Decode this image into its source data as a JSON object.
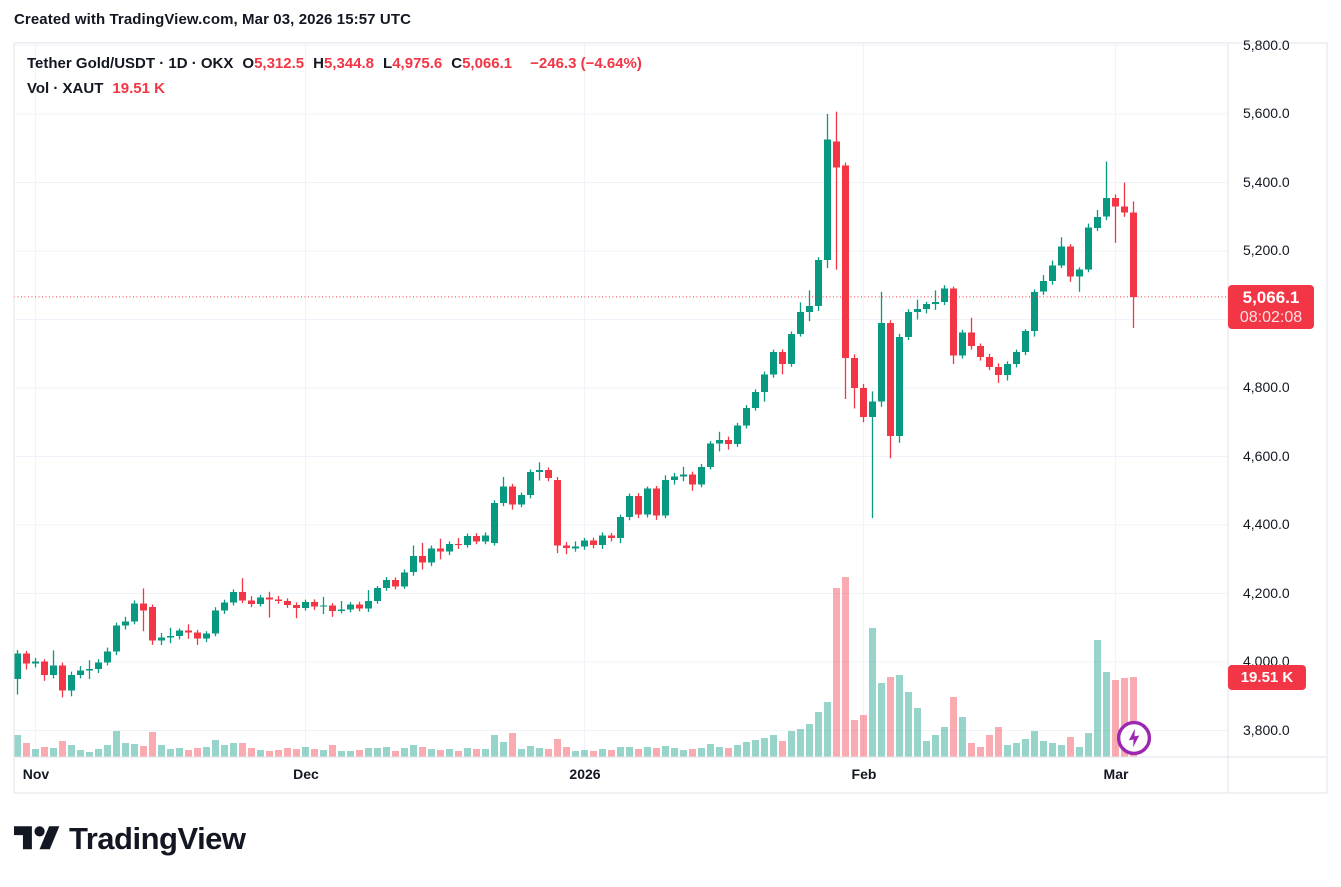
{
  "page": {
    "credit": "Created with TradingView.com, Mar 03, 2026 15:57 UTC"
  },
  "legend": {
    "title": "Tether Gold/USDT · 1D · OKX",
    "ohlc": [
      {
        "label": "O",
        "value": "5,312.5"
      },
      {
        "label": "H",
        "value": "5,344.8"
      },
      {
        "label": "L",
        "value": "4,975.6"
      },
      {
        "label": "C",
        "value": "5,066.1"
      }
    ],
    "change": "−246.3 (−4.64%)",
    "volume_label": "Vol · XAUT",
    "volume_value": "19.51 K"
  },
  "price_scale": {
    "ticks": [
      {
        "label": "5,800.0",
        "price": 5800
      },
      {
        "label": "5,600.0",
        "price": 5600
      },
      {
        "label": "5,400.0",
        "price": 5400
      },
      {
        "label": "5,200.0",
        "price": 5200
      },
      {
        "label": "5,000.0",
        "price": 5000
      },
      {
        "label": "4,800.0",
        "price": 4800
      },
      {
        "label": "4,600.0",
        "price": 4600
      },
      {
        "label": "4,400.0",
        "price": 4400
      },
      {
        "label": "4,200.0",
        "price": 4200
      },
      {
        "label": "4,000.0",
        "price": 4000
      },
      {
        "label": "3,800.0",
        "price": 3800
      }
    ],
    "badge": {
      "price": "5,066.1",
      "countdown": "08:02:08"
    },
    "volume_badge": "19.51 K"
  },
  "time_scale": {
    "ticks": [
      {
        "label": "Nov",
        "index": 2
      },
      {
        "label": "Dec",
        "index": 32
      },
      {
        "label": "2026",
        "index": 63
      },
      {
        "label": "Feb",
        "index": 94
      },
      {
        "label": "Mar",
        "index": 122
      }
    ]
  },
  "footer": {
    "logo_text": "TradingView"
  },
  "colors": {
    "up": "#089981",
    "down": "#f23645",
    "up_volume": "rgba(8,153,129,0.42)",
    "down_volume": "rgba(242,54,69,0.42)",
    "grid": "#f0f3fa",
    "border": "#e0e3eb",
    "text": "#131722",
    "badge": "#f23645",
    "bolt": "#9c27b0"
  },
  "chart_data": {
    "type": "candlestick_with_volume",
    "title": "Tether Gold/USDT",
    "timeframe": "1D",
    "exchange": "OKX",
    "legend_ohlc": {
      "open": 5312.5,
      "high": 5344.8,
      "low": 4975.6,
      "close": 5066.1,
      "change": -246.3,
      "change_pct": -4.64
    },
    "current_volume_k": 19.51,
    "countdown": "08:02:08",
    "price_line": 5066.1,
    "y_axis": {
      "tick_min": 3800,
      "tick_max": 5800,
      "tick_step": 200,
      "grid": true
    },
    "x_axis": {
      "start": "2025-10-30",
      "end": "2026-03-03",
      "labels": [
        "Nov",
        "Dec",
        "2026",
        "Feb",
        "Mar"
      ]
    },
    "volume_unit": "K",
    "candles_format": [
      "date",
      "open",
      "high",
      "low",
      "close",
      "volume_k"
    ],
    "candles": [
      [
        "2025-10-30",
        3950,
        4035,
        3905,
        4025,
        5.4
      ],
      [
        "2025-10-31",
        4025,
        4032,
        3978,
        3996,
        3.4
      ],
      [
        "2025-11-01",
        3996,
        4012,
        3984,
        4001,
        2.0
      ],
      [
        "2025-11-02",
        4001,
        4008,
        3945,
        3962,
        2.4
      ],
      [
        "2025-11-03",
        3962,
        4034,
        3952,
        3990,
        2.2
      ],
      [
        "2025-11-04",
        3990,
        3998,
        3897,
        3917,
        3.9
      ],
      [
        "2025-11-05",
        3917,
        3972,
        3900,
        3962,
        2.9
      ],
      [
        "2025-11-06",
        3962,
        3988,
        3952,
        3975,
        1.7
      ],
      [
        "2025-11-07",
        3975,
        4005,
        3950,
        3979,
        1.2
      ],
      [
        "2025-11-08",
        3979,
        4008,
        3968,
        3998,
        2.0
      ],
      [
        "2025-11-09",
        3998,
        4042,
        3990,
        4031,
        2.9
      ],
      [
        "2025-11-10",
        4031,
        4115,
        4020,
        4107,
        6.3
      ],
      [
        "2025-11-11",
        4107,
        4132,
        4095,
        4118,
        3.4
      ],
      [
        "2025-11-12",
        4118,
        4180,
        4110,
        4171,
        3.2
      ],
      [
        "2025-11-13",
        4171,
        4215,
        4090,
        4151,
        2.7
      ],
      [
        "2025-11-14",
        4160,
        4168,
        4050,
        4063,
        6.1
      ],
      [
        "2025-11-15",
        4063,
        4085,
        4049,
        4072,
        2.9
      ],
      [
        "2025-11-16",
        4072,
        4100,
        4055,
        4076,
        2.0
      ],
      [
        "2025-11-17",
        4076,
        4098,
        4066,
        4092,
        2.2
      ],
      [
        "2025-11-18",
        4092,
        4110,
        4068,
        4086,
        1.7
      ],
      [
        "2025-11-19",
        4086,
        4094,
        4050,
        4068,
        2.2
      ],
      [
        "2025-11-20",
        4068,
        4090,
        4058,
        4083,
        2.4
      ],
      [
        "2025-11-21",
        4083,
        4160,
        4075,
        4150,
        4.1
      ],
      [
        "2025-11-22",
        4150,
        4182,
        4140,
        4174,
        2.9
      ],
      [
        "2025-11-23",
        4174,
        4212,
        4165,
        4205,
        3.4
      ],
      [
        "2025-11-24",
        4205,
        4245,
        4172,
        4180,
        3.4
      ],
      [
        "2025-11-25",
        4180,
        4192,
        4160,
        4170,
        2.2
      ],
      [
        "2025-11-26",
        4170,
        4196,
        4162,
        4189,
        1.7
      ],
      [
        "2025-11-27",
        4189,
        4205,
        4130,
        4183,
        1.5
      ],
      [
        "2025-11-28",
        4183,
        4193,
        4170,
        4178,
        1.7
      ],
      [
        "2025-11-29",
        4178,
        4186,
        4158,
        4166,
        2.2
      ],
      [
        "2025-11-30",
        4166,
        4174,
        4128,
        4158,
        2.0
      ],
      [
        "2025-12-01",
        4158,
        4182,
        4150,
        4175,
        2.4
      ],
      [
        "2025-12-02",
        4175,
        4183,
        4152,
        4162,
        2.0
      ],
      [
        "2025-12-03",
        4162,
        4190,
        4140,
        4165,
        1.7
      ],
      [
        "2025-12-04",
        4165,
        4172,
        4132,
        4149,
        2.9
      ],
      [
        "2025-12-05",
        4149,
        4178,
        4142,
        4153,
        1.5
      ],
      [
        "2025-12-06",
        4153,
        4175,
        4145,
        4168,
        1.5
      ],
      [
        "2025-12-07",
        4168,
        4176,
        4148,
        4156,
        1.7
      ],
      [
        "2025-12-08",
        4156,
        4210,
        4146,
        4178,
        2.2
      ],
      [
        "2025-12-09",
        4178,
        4222,
        4170,
        4216,
        2.2
      ],
      [
        "2025-12-10",
        4216,
        4248,
        4208,
        4239,
        2.4
      ],
      [
        "2025-12-11",
        4239,
        4247,
        4212,
        4221,
        1.5
      ],
      [
        "2025-12-12",
        4221,
        4270,
        4214,
        4262,
        2.2
      ],
      [
        "2025-12-13",
        4262,
        4340,
        4252,
        4310,
        2.9
      ],
      [
        "2025-12-14",
        4310,
        4348,
        4270,
        4290,
        2.4
      ],
      [
        "2025-12-15",
        4290,
        4340,
        4280,
        4332,
        2.0
      ],
      [
        "2025-12-16",
        4332,
        4360,
        4300,
        4322,
        1.7
      ],
      [
        "2025-12-17",
        4322,
        4352,
        4312,
        4345,
        2.0
      ],
      [
        "2025-12-18",
        4345,
        4362,
        4330,
        4342,
        1.5
      ],
      [
        "2025-12-19",
        4342,
        4375,
        4334,
        4368,
        2.2
      ],
      [
        "2025-12-20",
        4368,
        4376,
        4344,
        4352,
        2.0
      ],
      [
        "2025-12-21",
        4352,
        4378,
        4344,
        4370,
        2.0
      ],
      [
        "2025-12-22",
        4347,
        4472,
        4340,
        4464,
        5.4
      ],
      [
        "2025-12-23",
        4464,
        4540,
        4455,
        4512,
        3.7
      ],
      [
        "2025-12-24",
        4512,
        4520,
        4445,
        4460,
        5.9
      ],
      [
        "2025-12-25",
        4460,
        4495,
        4452,
        4487,
        2.0
      ],
      [
        "2025-12-26",
        4487,
        4562,
        4478,
        4555,
        2.7
      ],
      [
        "2025-12-27",
        4555,
        4583,
        4530,
        4561,
        2.2
      ],
      [
        "2025-12-28",
        4561,
        4568,
        4528,
        4538,
        2.0
      ],
      [
        "2025-12-29",
        4531,
        4540,
        4318,
        4340,
        4.4
      ],
      [
        "2025-12-30",
        4340,
        4350,
        4315,
        4332,
        2.4
      ],
      [
        "2025-12-31",
        4332,
        4352,
        4322,
        4337,
        1.5
      ],
      [
        "2026-01-01",
        4337,
        4362,
        4328,
        4355,
        1.7
      ],
      [
        "2026-01-02",
        4355,
        4363,
        4332,
        4342,
        1.5
      ],
      [
        "2026-01-03",
        4342,
        4378,
        4330,
        4370,
        2.0
      ],
      [
        "2026-01-04",
        4370,
        4377,
        4352,
        4362,
        1.7
      ],
      [
        "2026-01-05",
        4362,
        4430,
        4347,
        4423,
        2.4
      ],
      [
        "2026-01-06",
        4423,
        4492,
        4414,
        4485,
        2.4
      ],
      [
        "2026-01-07",
        4485,
        4493,
        4420,
        4430,
        2.0
      ],
      [
        "2026-01-08",
        4430,
        4512,
        4422,
        4506,
        2.4
      ],
      [
        "2026-01-09",
        4506,
        4514,
        4415,
        4428,
        2.2
      ],
      [
        "2026-01-10",
        4428,
        4545,
        4420,
        4532,
        2.7
      ],
      [
        "2026-01-11",
        4532,
        4552,
        4518,
        4541,
        2.2
      ],
      [
        "2026-01-12",
        4541,
        4570,
        4528,
        4548,
        1.7
      ],
      [
        "2026-01-13",
        4548,
        4556,
        4500,
        4518,
        2.0
      ],
      [
        "2026-01-14",
        4518,
        4578,
        4510,
        4570,
        2.2
      ],
      [
        "2026-01-15",
        4570,
        4645,
        4562,
        4638,
        3.2
      ],
      [
        "2026-01-16",
        4638,
        4672,
        4615,
        4648,
        2.4
      ],
      [
        "2026-01-17",
        4648,
        4658,
        4620,
        4636,
        2.2
      ],
      [
        "2026-01-18",
        4636,
        4698,
        4628,
        4690,
        2.9
      ],
      [
        "2026-01-19",
        4690,
        4750,
        4682,
        4742,
        3.7
      ],
      [
        "2026-01-20",
        4742,
        4796,
        4734,
        4788,
        4.1
      ],
      [
        "2026-01-21",
        4788,
        4848,
        4760,
        4840,
        4.6
      ],
      [
        "2026-01-22",
        4840,
        4912,
        4830,
        4905,
        5.4
      ],
      [
        "2026-01-23",
        4905,
        4913,
        4840,
        4870,
        3.9
      ],
      [
        "2026-01-24",
        4870,
        4965,
        4862,
        4958,
        6.3
      ],
      [
        "2026-01-25",
        4958,
        5050,
        4950,
        5022,
        6.8
      ],
      [
        "2026-01-26",
        5022,
        5085,
        4995,
        5040,
        8.0
      ],
      [
        "2026-01-27",
        5040,
        5182,
        5025,
        5174,
        11.0
      ],
      [
        "2026-01-28",
        5174,
        5600,
        5150,
        5525,
        13.4
      ],
      [
        "2026-01-29",
        5519,
        5607,
        5145,
        5443,
        41.2
      ],
      [
        "2026-01-30",
        5449,
        5458,
        4768,
        4888,
        43.9
      ],
      [
        "2026-01-31",
        4888,
        4898,
        4740,
        4800,
        9.0
      ],
      [
        "2026-02-01",
        4800,
        4812,
        4700,
        4715,
        10.2
      ],
      [
        "2026-02-02",
        4715,
        4790,
        4420,
        4760,
        31.5
      ],
      [
        "2026-02-03",
        4760,
        5081,
        4745,
        4990,
        18.0
      ],
      [
        "2026-02-04",
        4990,
        4998,
        4595,
        4660,
        19.5
      ],
      [
        "2026-02-05",
        4660,
        4958,
        4640,
        4949,
        20.0
      ],
      [
        "2026-02-06",
        4949,
        5030,
        4940,
        5022,
        15.9
      ],
      [
        "2026-02-07",
        5022,
        5058,
        5000,
        5031,
        12.0
      ],
      [
        "2026-02-08",
        5031,
        5052,
        5018,
        5045,
        3.9
      ],
      [
        "2026-02-09",
        5045,
        5085,
        5028,
        5051,
        5.4
      ],
      [
        "2026-02-10",
        5051,
        5100,
        5042,
        5090,
        7.3
      ],
      [
        "2026-02-11",
        5090,
        5096,
        4870,
        4895,
        14.6
      ],
      [
        "2026-02-12",
        4895,
        4970,
        4886,
        4962,
        9.8
      ],
      [
        "2026-02-13",
        4962,
        5005,
        4912,
        4922,
        3.4
      ],
      [
        "2026-02-14",
        4922,
        4930,
        4880,
        4890,
        2.4
      ],
      [
        "2026-02-15",
        4890,
        4900,
        4852,
        4862,
        5.4
      ],
      [
        "2026-02-16",
        4862,
        4872,
        4815,
        4838,
        7.3
      ],
      [
        "2026-02-17",
        4838,
        4878,
        4822,
        4870,
        2.9
      ],
      [
        "2026-02-18",
        4870,
        4912,
        4860,
        4905,
        3.4
      ],
      [
        "2026-02-19",
        4905,
        4972,
        4896,
        4966,
        4.4
      ],
      [
        "2026-02-20",
        4966,
        5088,
        4950,
        5081,
        6.3
      ],
      [
        "2026-02-21",
        5081,
        5130,
        5072,
        5112,
        3.9
      ],
      [
        "2026-02-22",
        5112,
        5172,
        5102,
        5158,
        3.4
      ],
      [
        "2026-02-23",
        5158,
        5240,
        5150,
        5213,
        2.9
      ],
      [
        "2026-02-24",
        5213,
        5220,
        5110,
        5126,
        4.9
      ],
      [
        "2026-02-25",
        5126,
        5152,
        5081,
        5146,
        2.4
      ],
      [
        "2026-02-26",
        5146,
        5280,
        5138,
        5268,
        5.9
      ],
      [
        "2026-02-27",
        5268,
        5320,
        5258,
        5300,
        28.5
      ],
      [
        "2026-02-28",
        5300,
        5461,
        5290,
        5355,
        20.7
      ],
      [
        "2026-03-01",
        5355,
        5365,
        5224,
        5330,
        18.8
      ],
      [
        "2026-03-02",
        5330,
        5400,
        5300,
        5312,
        19.3
      ],
      [
        "2026-03-03",
        5312.5,
        5344.8,
        4975.6,
        5066.1,
        19.51
      ]
    ]
  }
}
